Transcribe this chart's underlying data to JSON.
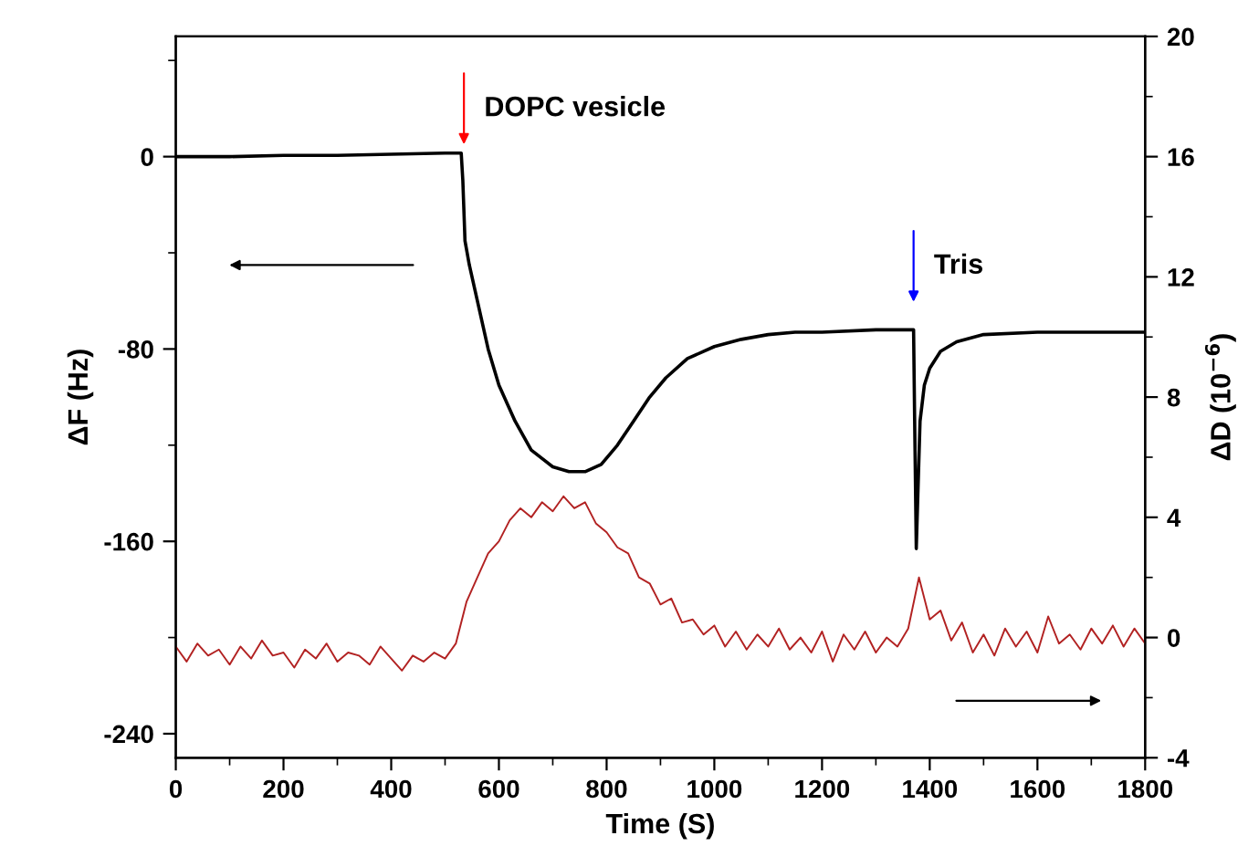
{
  "chart_data": {
    "type": "line",
    "xlabel": "Time (S)",
    "ylabel": "ΔF (Hz)",
    "y2label": "ΔD (10$^{−6}$)",
    "xlim": [
      0,
      1800
    ],
    "xticks": [
      0,
      200,
      400,
      600,
      800,
      1000,
      1200,
      1400,
      1600,
      1800
    ],
    "ylim": [
      -250,
      50
    ],
    "yticks": [
      -240,
      -160,
      -80,
      0
    ],
    "y2lim": [
      -4,
      20
    ],
    "y2ticks": [
      -4,
      0,
      4,
      8,
      12,
      16,
      20
    ],
    "marker": "none",
    "line_style": "solid",
    "series": [
      {
        "color": "#000000",
        "x": [
          0,
          100,
          200,
          300,
          400,
          500,
          530,
          533,
          537,
          545,
          560,
          580,
          600,
          630,
          660,
          700,
          730,
          760,
          790,
          820,
          850,
          880,
          910,
          950,
          1000,
          1050,
          1100,
          1150,
          1200,
          1300,
          1370,
          1372,
          1375,
          1378,
          1382,
          1390,
          1400,
          1420,
          1450,
          1500,
          1600,
          1700,
          1800
        ],
        "values": [
          0,
          0,
          0.5,
          0.5,
          1,
          1.5,
          1.5,
          -10,
          -35,
          -45,
          -60,
          -80,
          -95,
          -110,
          -122,
          -129,
          -131,
          -131,
          -128,
          -120,
          -110,
          -100,
          -92,
          -84,
          -79,
          -76,
          -74,
          -73,
          -73,
          -72,
          -72,
          -110,
          -163,
          -140,
          -110,
          -95,
          -88,
          -81,
          -77,
          -74,
          -73,
          -73,
          -73
        ]
      },
      {
        "color": "#b22222",
        "axis": "y2",
        "x": [
          0,
          20,
          40,
          60,
          80,
          100,
          120,
          140,
          160,
          180,
          200,
          220,
          240,
          260,
          280,
          300,
          320,
          340,
          360,
          380,
          400,
          420,
          440,
          460,
          480,
          500,
          520,
          540,
          560,
          580,
          600,
          620,
          640,
          660,
          680,
          700,
          720,
          740,
          760,
          780,
          800,
          820,
          840,
          860,
          880,
          900,
          920,
          940,
          960,
          980,
          1000,
          1020,
          1040,
          1060,
          1080,
          1100,
          1120,
          1140,
          1160,
          1180,
          1200,
          1220,
          1240,
          1260,
          1280,
          1300,
          1320,
          1340,
          1360,
          1380,
          1400,
          1420,
          1440,
          1460,
          1480,
          1500,
          1520,
          1540,
          1560,
          1580,
          1600,
          1620,
          1640,
          1660,
          1680,
          1700,
          1720,
          1740,
          1760,
          1780,
          1800
        ],
        "values": [
          -0.3,
          -0.8,
          -0.2,
          -0.6,
          -0.4,
          -0.9,
          -0.3,
          -0.7,
          -0.1,
          -0.6,
          -0.5,
          -1.0,
          -0.4,
          -0.7,
          -0.2,
          -0.8,
          -0.5,
          -0.6,
          -0.9,
          -0.3,
          -0.7,
          -1.1,
          -0.6,
          -0.8,
          -0.5,
          -0.7,
          -0.2,
          1.2,
          2.0,
          2.8,
          3.2,
          3.9,
          4.3,
          4.0,
          4.5,
          4.2,
          4.7,
          4.3,
          4.5,
          3.8,
          3.5,
          3.0,
          2.8,
          2.0,
          1.8,
          1.1,
          1.3,
          0.5,
          0.6,
          0.1,
          0.4,
          -0.3,
          0.2,
          -0.4,
          0.1,
          -0.3,
          0.3,
          -0.4,
          0.0,
          -0.5,
          0.2,
          -0.8,
          0.1,
          -0.4,
          0.2,
          -0.5,
          0.0,
          -0.3,
          0.3,
          2.0,
          0.6,
          0.9,
          -0.1,
          0.5,
          -0.5,
          0.1,
          -0.6,
          0.3,
          -0.3,
          0.2,
          -0.5,
          0.7,
          -0.2,
          0.1,
          -0.4,
          0.3,
          -0.2,
          0.4,
          -0.3,
          0.3,
          -0.2
        ]
      }
    ],
    "annotations": [
      {
        "text": "DOPC vesicle",
        "x": 535,
        "y": 3
      },
      {
        "text": "Tris",
        "x": 1370,
        "y": -72
      }
    ]
  }
}
